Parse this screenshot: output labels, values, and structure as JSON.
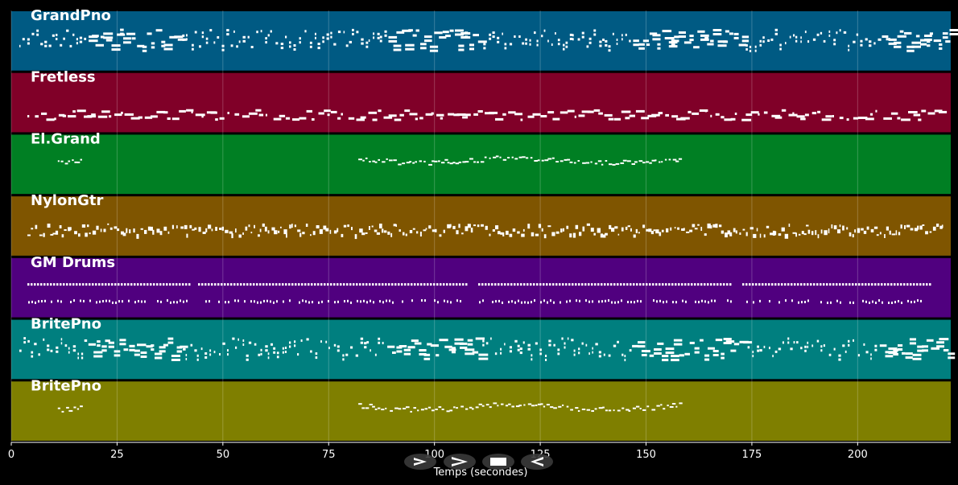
{
  "chart_data": {
    "type": "piano-roll",
    "xlabel": "Temps (secondes)",
    "xlim": [
      0,
      222
    ],
    "x_ticks": [
      0,
      25,
      50,
      75,
      100,
      125,
      150,
      175,
      200
    ],
    "grid": true,
    "tracks": [
      {
        "name": "GrandPno",
        "color": "#005a83",
        "pattern": "piano"
      },
      {
        "name": "Fretless",
        "color": "#800028",
        "pattern": "bass"
      },
      {
        "name": "El.Grand",
        "color": "#007f23",
        "pattern": "melody"
      },
      {
        "name": "NylonGtr",
        "color": "#7f5500",
        "pattern": "guitar"
      },
      {
        "name": "GM Drums",
        "color": "#50007f",
        "pattern": "drums"
      },
      {
        "name": "BritePno",
        "color": "#007f7f",
        "pattern": "piano"
      },
      {
        "name": "BritePno",
        "color": "#7f7f00",
        "pattern": "melody"
      }
    ]
  },
  "controls": [
    {
      "name": "play-button",
      "icon": "play-icon"
    },
    {
      "name": "fast-forward-button",
      "icon": "fast-forward-icon"
    },
    {
      "name": "stop-button",
      "icon": "stop-icon"
    },
    {
      "name": "rewind-button",
      "icon": "rewind-icon"
    }
  ]
}
